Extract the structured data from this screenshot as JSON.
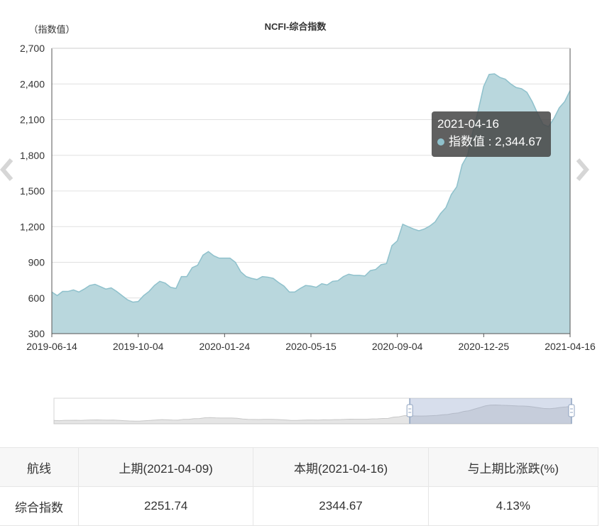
{
  "colors": {
    "area_fill": "#b9d7dd",
    "area_line": "#8fc1cc",
    "grid": "#e0e0e0",
    "tooltip_bg": "#464646"
  },
  "chart_data": {
    "type": "area",
    "title": "NCFI-综合指数",
    "ylabel": "（指数值）",
    "ylim": [
      300,
      2700
    ],
    "yticks": [
      "2,700",
      "2,400",
      "2,100",
      "1,800",
      "1,500",
      "1,200",
      "900",
      "600",
      "300"
    ],
    "xticks": [
      "2019-06-14",
      "2019-10-04",
      "2020-01-24",
      "2020-05-15",
      "2020-09-04",
      "2020-12-25",
      "2021-04-16"
    ],
    "grid": true,
    "series": [
      {
        "name": "指数值",
        "x": [
          "2019-06-14",
          "2019-06-21",
          "2019-06-28",
          "2019-07-05",
          "2019-07-12",
          "2019-07-19",
          "2019-07-26",
          "2019-08-02",
          "2019-08-09",
          "2019-08-16",
          "2019-08-23",
          "2019-08-30",
          "2019-09-06",
          "2019-09-13",
          "2019-09-20",
          "2019-09-27",
          "2019-10-04",
          "2019-10-11",
          "2019-10-18",
          "2019-10-25",
          "2019-11-01",
          "2019-11-08",
          "2019-11-15",
          "2019-11-22",
          "2019-11-29",
          "2019-12-06",
          "2019-12-13",
          "2019-12-20",
          "2019-12-27",
          "2020-01-03",
          "2020-01-10",
          "2020-01-17",
          "2020-01-24",
          "2020-01-31",
          "2020-02-07",
          "2020-02-14",
          "2020-02-21",
          "2020-02-28",
          "2020-03-06",
          "2020-03-13",
          "2020-03-20",
          "2020-03-27",
          "2020-04-03",
          "2020-04-10",
          "2020-04-17",
          "2020-04-24",
          "2020-05-01",
          "2020-05-08",
          "2020-05-15",
          "2020-05-22",
          "2020-05-29",
          "2020-06-05",
          "2020-06-12",
          "2020-06-19",
          "2020-06-26",
          "2020-07-03",
          "2020-07-10",
          "2020-07-17",
          "2020-07-24",
          "2020-07-31",
          "2020-08-07",
          "2020-08-14",
          "2020-08-21",
          "2020-08-28",
          "2020-09-04",
          "2020-09-11",
          "2020-09-18",
          "2020-09-25",
          "2020-10-02",
          "2020-10-09",
          "2020-10-16",
          "2020-10-23",
          "2020-10-30",
          "2020-11-06",
          "2020-11-13",
          "2020-11-20",
          "2020-11-27",
          "2020-12-04",
          "2020-12-11",
          "2020-12-18",
          "2020-12-25",
          "2021-01-01",
          "2021-01-08",
          "2021-01-15",
          "2021-01-22",
          "2021-01-29",
          "2021-02-05",
          "2021-02-12",
          "2021-02-19",
          "2021-02-26",
          "2021-03-05",
          "2021-03-12",
          "2021-03-19",
          "2021-03-26",
          "2021-04-02",
          "2021-04-09",
          "2021-04-16"
        ],
        "values": [
          650,
          620,
          655,
          655,
          668,
          650,
          675,
          705,
          715,
          695,
          675,
          685,
          655,
          620,
          585,
          565,
          570,
          620,
          655,
          705,
          740,
          725,
          690,
          680,
          780,
          780,
          855,
          875,
          960,
          990,
          955,
          935,
          935,
          935,
          900,
          820,
          780,
          765,
          755,
          780,
          775,
          765,
          730,
          700,
          650,
          650,
          680,
          705,
          700,
          690,
          720,
          710,
          740,
          745,
          780,
          800,
          790,
          790,
          785,
          830,
          840,
          880,
          890,
          1040,
          1080,
          1220,
          1200,
          1180,
          1165,
          1180,
          1205,
          1240,
          1310,
          1360,
          1470,
          1535,
          1720,
          1800,
          2000,
          2180,
          2380,
          2480,
          2485,
          2455,
          2440,
          2400,
          2370,
          2360,
          2330,
          2250,
          2150,
          2060,
          2040,
          2110,
          2200,
          2251.74,
          2344.67
        ]
      }
    ],
    "slider": {
      "start": "2020-09-18",
      "end": "2021-04-16"
    }
  },
  "tooltip": {
    "date": "2021-04-16",
    "series_name": "指数值",
    "value": "2,344.67",
    "separator": " : "
  },
  "table": {
    "headers": [
      "航线",
      "上期(2021-04-09)",
      "本期(2021-04-16)",
      "与上期比涨跌(%)"
    ],
    "rows": [
      [
        "综合指数",
        "2251.74",
        "2344.67",
        "4.13%"
      ]
    ]
  }
}
